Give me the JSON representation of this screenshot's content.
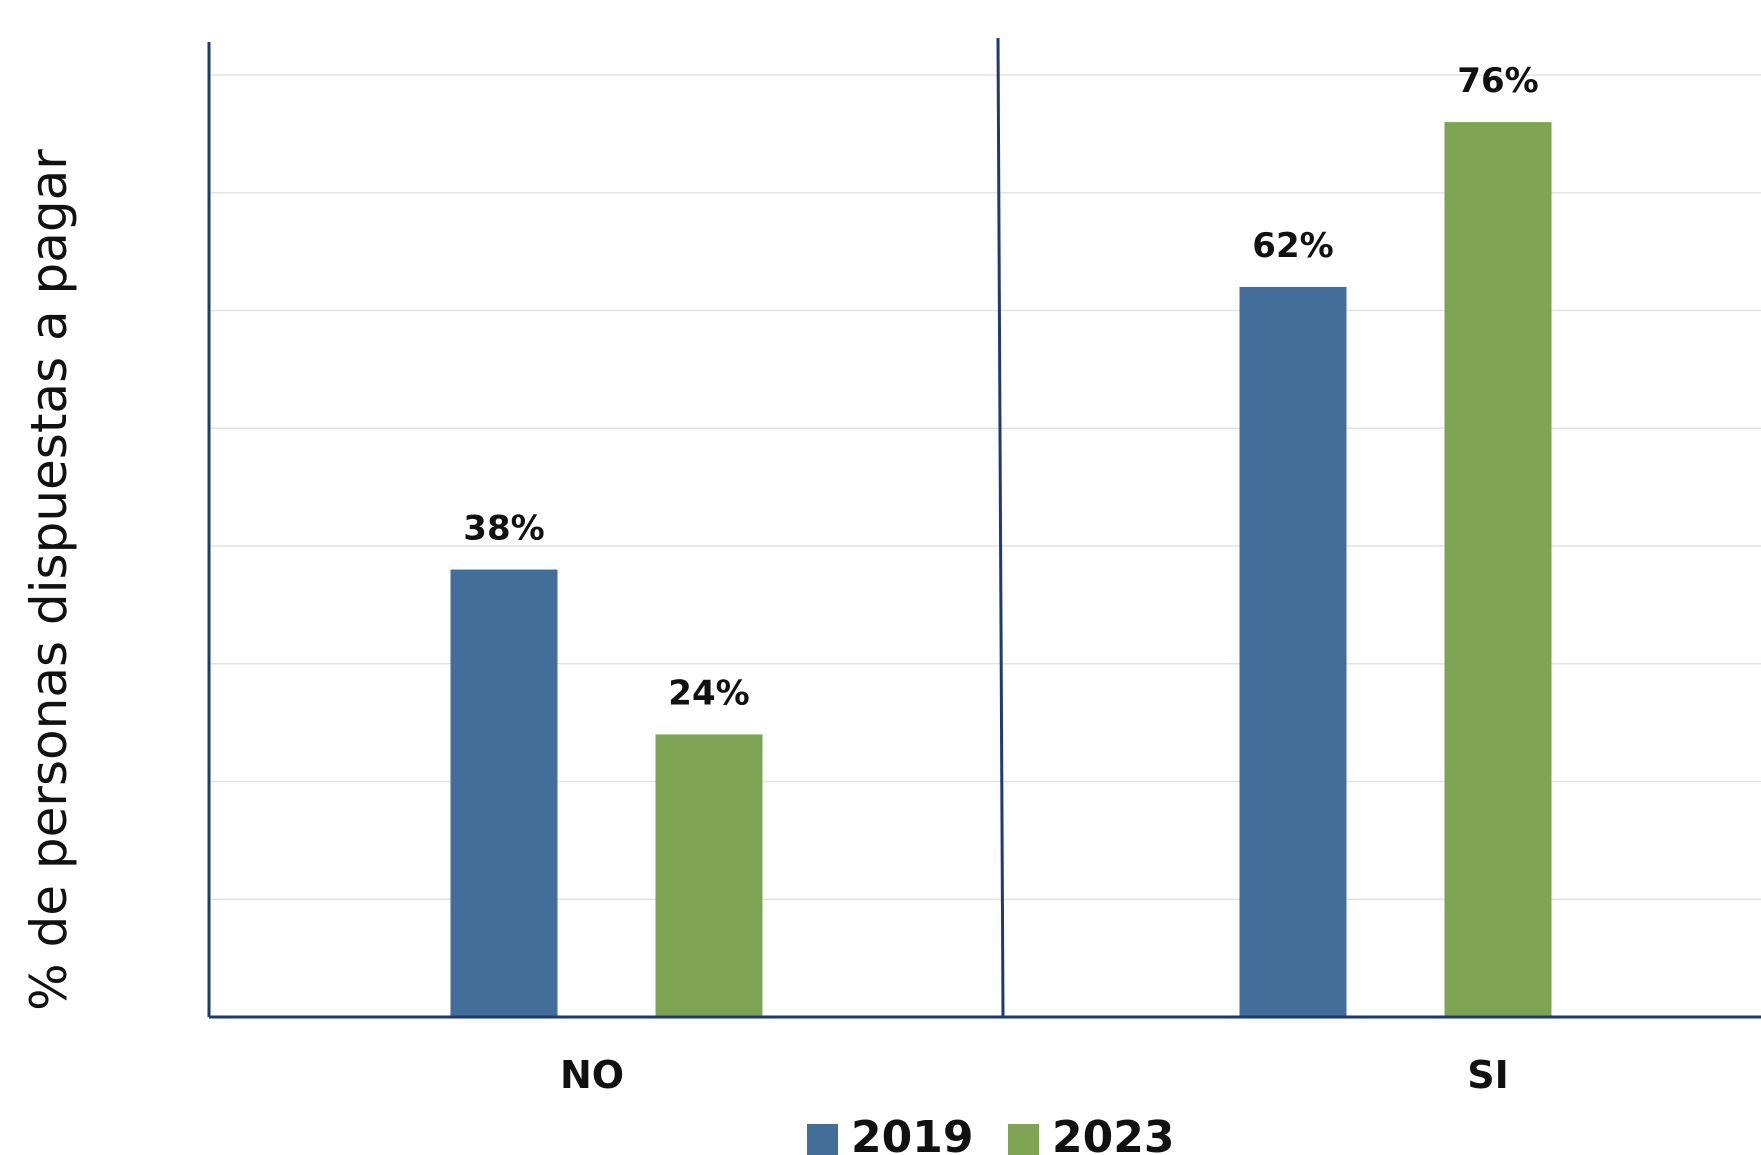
{
  "chart_data": {
    "type": "bar",
    "ylabel": "% de personas dispuestas a pagar",
    "xlabel": "",
    "categories": [
      "NO",
      "SI"
    ],
    "series": [
      {
        "name": "2019",
        "values": [
          38,
          62
        ],
        "color": "#436e99"
      },
      {
        "name": "2023",
        "values": [
          24,
          76
        ],
        "color": "#7ea453"
      }
    ],
    "data_labels": [
      [
        "38%",
        "62%"
      ],
      [
        "24%",
        "76%"
      ]
    ],
    "ylim": [
      0,
      80
    ],
    "grid": true,
    "legend": "bottom",
    "axis_color": "#1f3a73",
    "grid_color": "#e3e3e3"
  }
}
